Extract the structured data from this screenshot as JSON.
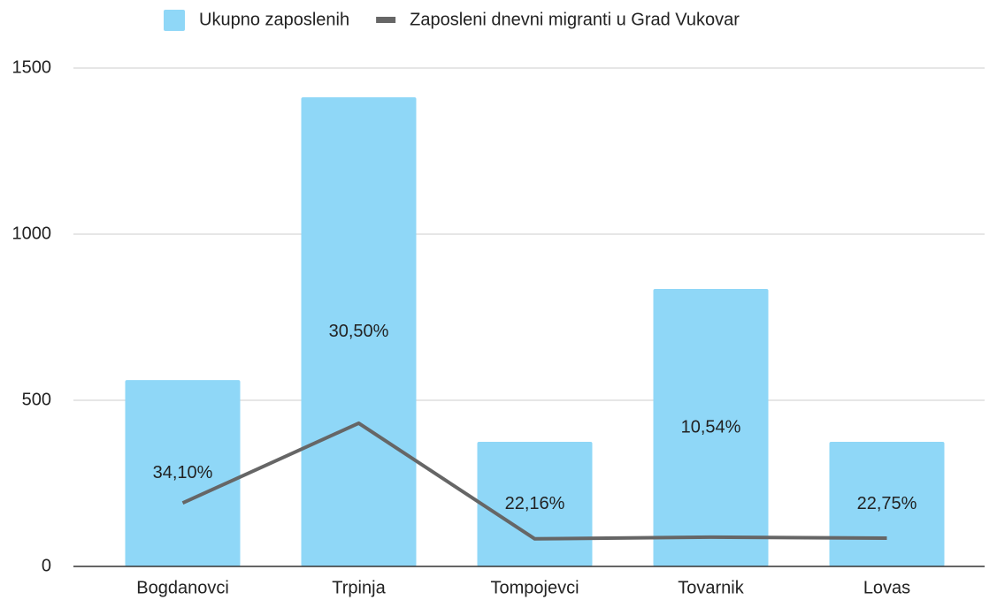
{
  "chart_data": {
    "type": "bar",
    "categories": [
      "Bogdanovci",
      "Trpinja",
      "Tompojevci",
      "Tovarnik",
      "Lovas"
    ],
    "series": [
      {
        "name": "Ukupno zaposlenih",
        "type": "bar",
        "color": "#8fd7f7",
        "values": [
          561,
          1412,
          375,
          835,
          375
        ]
      },
      {
        "name": "Zaposleni dnevni migranti u Grad Vukovar",
        "type": "line",
        "color": "#666666",
        "values": [
          191,
          431,
          83,
          88,
          85
        ]
      }
    ],
    "annotations": [
      "34,10%",
      "30,50%",
      "22,16%",
      "10,54%",
      "22,75%"
    ],
    "ylim": [
      0,
      1500
    ],
    "yticks": [
      0,
      500,
      1000,
      1500
    ],
    "grid": true,
    "legend": "top"
  }
}
